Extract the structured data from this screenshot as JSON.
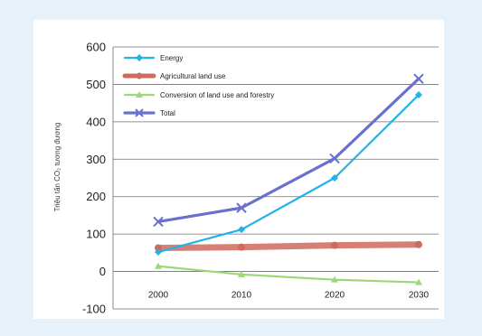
{
  "chart_data": {
    "type": "line",
    "title": "",
    "xlabel": "",
    "ylabel": "Triệu tấn CO₂ tương đương",
    "x": [
      2000,
      2010,
      2020,
      2030
    ],
    "x_tick_labels": [
      "2000",
      "2010",
      "2020",
      "2030"
    ],
    "ylim": [
      -100,
      600
    ],
    "y_ticks": [
      -100,
      0,
      100,
      200,
      300,
      400,
      500,
      600
    ],
    "y_tick_labels": [
      "-100",
      "0",
      "100",
      "200",
      "300",
      "400",
      "500",
      "600"
    ],
    "grid": "horizontal",
    "legend_position": "top-left",
    "series": [
      {
        "name": "Energy",
        "values": [
          52,
          112,
          250,
          472
        ],
        "color": "#21b2e8",
        "marker": "diamond"
      },
      {
        "name": "Agricultural land use",
        "values": [
          63,
          65,
          70,
          72
        ],
        "color": "#cf6a5d",
        "marker": "circle"
      },
      {
        "name": "Conversion of land use and forestry",
        "values": [
          14,
          -8,
          -22,
          -29
        ],
        "color": "#9ed67a",
        "marker": "triangle"
      },
      {
        "name": "Total",
        "values": [
          133,
          170,
          302,
          515
        ],
        "color": "#6a70cf",
        "marker": "x"
      }
    ]
  }
}
